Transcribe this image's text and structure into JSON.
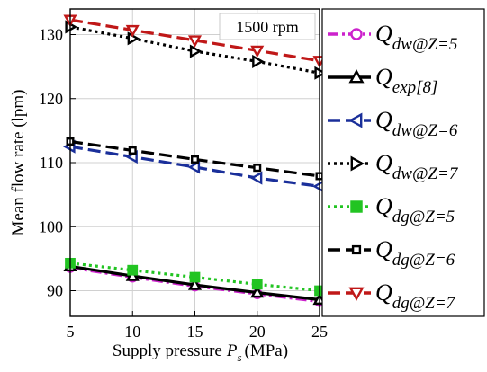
{
  "chart_data": {
    "type": "line",
    "annotation": "1500 rpm",
    "xlabel": "Supply pressure",
    "xlabel_symbol": "P",
    "xlabel_subscript": "s",
    "xlabel_unit": "(MPa)",
    "ylabel": "Mean flow rate (lpm)",
    "xlim": [
      5,
      25
    ],
    "ylim": [
      86,
      134
    ],
    "xticks": [
      5,
      10,
      15,
      20,
      25
    ],
    "yticks": [
      90,
      100,
      110,
      120,
      130
    ],
    "grid": true,
    "legend_position": "right, outside plot",
    "x": [
      5,
      10,
      15,
      20,
      25
    ],
    "series": [
      {
        "name_main": "Q",
        "name_sub": "dw@Z=5",
        "color": "#cc22cc",
        "dash": "dashdot",
        "marker": "circle",
        "values": [
          93.6,
          92.1,
          90.7,
          89.5,
          88.3
        ]
      },
      {
        "name_main": "Q",
        "name_sub": "exp[8]",
        "color": "#000000",
        "dash": "solid",
        "marker": "triangle-up",
        "values": [
          93.8,
          92.3,
          90.9,
          89.7,
          88.6
        ]
      },
      {
        "name_main": "Q",
        "name_sub": "dw@Z=6",
        "color": "#1a2f9a",
        "dash": "dashed",
        "marker": "triangle-left",
        "values": [
          112.5,
          110.9,
          109.3,
          107.6,
          106.3
        ]
      },
      {
        "name_main": "Q",
        "name_sub": "dw@Z=7",
        "color": "#000000",
        "dash": "dotted",
        "marker": "triangle-right",
        "values": [
          131.2,
          129.4,
          127.4,
          125.8,
          124.0
        ]
      },
      {
        "name_main": "Q",
        "name_sub": "dg@Z=5",
        "color": "#22c422",
        "dash": "dotted",
        "marker": "square",
        "values": [
          94.3,
          93.2,
          92.1,
          91.0,
          90.0
        ]
      },
      {
        "name_main": "Q",
        "name_sub": "dg@Z=6",
        "color": "#000000",
        "dash": "dashed",
        "marker": "square-small",
        "values": [
          113.3,
          111.9,
          110.5,
          109.2,
          107.9
        ]
      },
      {
        "name_main": "Q",
        "name_sub": "dg@Z=7",
        "color": "#c01818",
        "dash": "dashed",
        "marker": "triangle-down",
        "values": [
          132.3,
          130.7,
          129.1,
          127.5,
          125.9
        ]
      }
    ]
  }
}
